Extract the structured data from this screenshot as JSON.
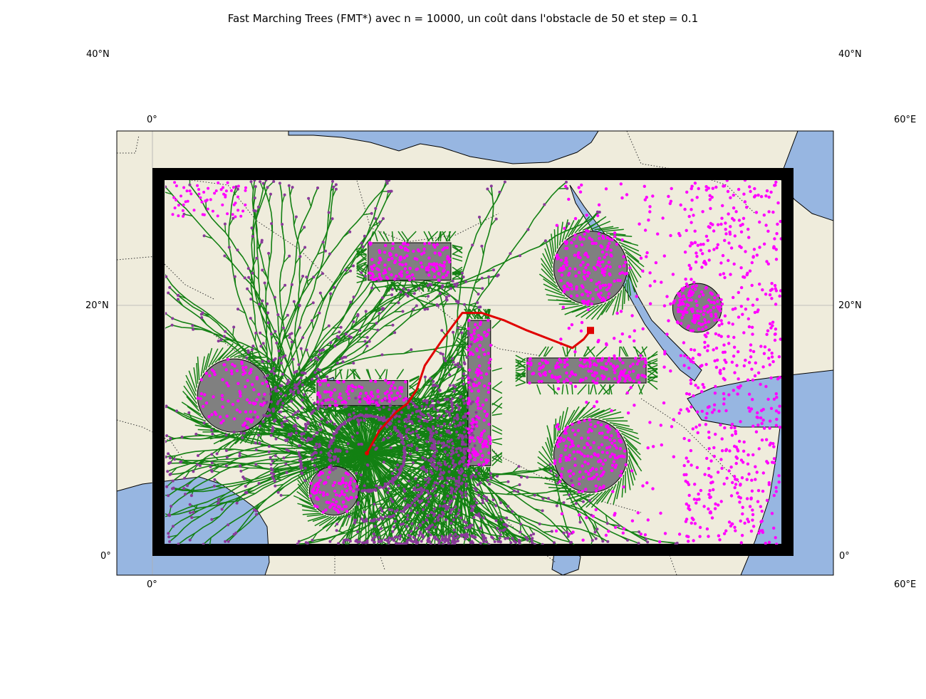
{
  "title": "Fast Marching Trees (FMT*) avec n = 10000, un coût dans l'obstacle de 50 et step = 0.1",
  "labels": {
    "top_left_lat": "40°N",
    "top_right_lat": "40°N",
    "top_left_lon": "0°",
    "top_right_lon": "60°E",
    "mid_left_lat": "20°N",
    "mid_right_lat": "20°N",
    "bottom_left_lat": "0°",
    "bottom_right_lat": "0°",
    "bottom_left_lon": "0°",
    "bottom_right_lon": "60°E"
  },
  "colors": {
    "land": "#efecdc",
    "water": "#97b6e1",
    "tree_edges": "#138013",
    "samples": "#ff00ff",
    "obstacles": "#808080",
    "path": "#e00000",
    "frame": "#000000"
  },
  "chart_data": {
    "type": "map",
    "algorithm": "FMT*",
    "n_samples": 10000,
    "obstacle_cost": 50,
    "step": 0.1,
    "obstacles": {
      "circles": [
        {
          "lon": 7.2,
          "lat": 12.8,
          "r": 3.0
        },
        {
          "lon": 16.0,
          "lat": 5.2,
          "r": 2.0
        },
        {
          "lon": 38.6,
          "lat": 23.0,
          "r": 3.0
        },
        {
          "lon": 38.6,
          "lat": 8.0,
          "r": 3.0
        },
        {
          "lon": 48.0,
          "lat": 19.8,
          "r": 2.0
        }
      ],
      "rectangles": [
        {
          "lon": [
            19.0,
            26.3
          ],
          "lat": [
            22.0,
            25.0
          ]
        },
        {
          "lon": [
            14.5,
            22.5
          ],
          "lat": [
            12.0,
            14.0
          ]
        },
        {
          "lon": [
            27.8,
            29.8
          ],
          "lat": [
            7.2,
            18.8
          ]
        },
        {
          "lon": [
            33.0,
            43.5
          ],
          "lat": [
            13.8,
            15.8
          ]
        }
      ]
    },
    "start": {
      "lon": 18.9,
      "lat": 8.2
    },
    "goal": {
      "lon": 38.6,
      "lat": 18.0
    },
    "path": [
      [
        18.9,
        8.2
      ],
      [
        20.0,
        10.0
      ],
      [
        21.5,
        11.5
      ],
      [
        22.5,
        12.2
      ],
      [
        23.3,
        13.3
      ],
      [
        24.0,
        15.2
      ],
      [
        25.5,
        17.2
      ],
      [
        27.3,
        19.4
      ],
      [
        29.0,
        19.4
      ],
      [
        31.0,
        18.8
      ],
      [
        33.0,
        18.0
      ],
      [
        35.0,
        17.3
      ],
      [
        37.0,
        16.6
      ],
      [
        38.0,
        17.3
      ],
      [
        38.6,
        18.0
      ]
    ]
  }
}
